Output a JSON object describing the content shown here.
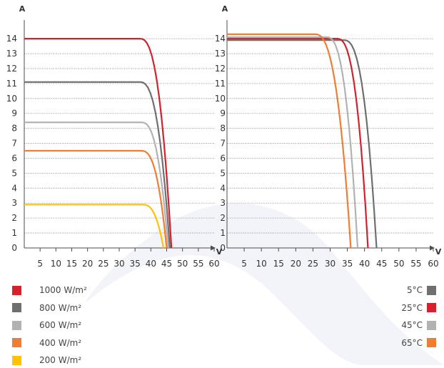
{
  "colors": {
    "background": "#ffffff",
    "grid": "#7f7f7f",
    "axis": "#4d4d4d",
    "text": "#333333",
    "red": "#d6202c",
    "dark_gray": "#6f6f6f",
    "light_gray": "#b2b2b2",
    "orange": "#f07d32",
    "yellow": "#ffc300",
    "watermark": "#eef0f7"
  },
  "legend_left": [
    {
      "label": "1000 W/m²",
      "color": "#d6202c"
    },
    {
      "label": "800 W/m²",
      "color": "#6f6f6f"
    },
    {
      "label": "600 W/m²",
      "color": "#b2b2b2"
    },
    {
      "label": "400 W/m²",
      "color": "#f07d32"
    },
    {
      "label": "200 W/m²",
      "color": "#ffc300"
    }
  ],
  "legend_right": [
    {
      "label": "5°C",
      "color": "#6f6f6f"
    },
    {
      "label": "25°C",
      "color": "#d6202c"
    },
    {
      "label": "45°C",
      "color": "#b2b2b2"
    },
    {
      "label": "65°C",
      "color": "#f07d32"
    }
  ],
  "chart_data": [
    {
      "type": "line",
      "title": "",
      "xlabel": "V",
      "ylabel": "A",
      "xlim": [
        0,
        60
      ],
      "ylim": [
        0,
        14.6
      ],
      "x_ticks": [
        5,
        10,
        15,
        20,
        25,
        30,
        35,
        40,
        45,
        50,
        55,
        60
      ],
      "y_ticks": [
        0,
        1,
        2,
        3,
        4,
        5,
        6,
        7,
        8,
        9,
        10,
        11,
        12,
        13,
        14
      ],
      "grid": "horizontal",
      "series": [
        {
          "name": "1000 W/m²",
          "color": "#d6202c",
          "isc": 14.0,
          "voc": 46.5,
          "knee_v": 36.5
        },
        {
          "name": "800 W/m²",
          "color": "#6f6f6f",
          "isc": 11.1,
          "voc": 46.0,
          "knee_v": 36.5
        },
        {
          "name": "600 W/m²",
          "color": "#b2b2b2",
          "isc": 8.4,
          "voc": 45.5,
          "knee_v": 37.0
        },
        {
          "name": "400 W/m²",
          "color": "#f07d32",
          "isc": 6.5,
          "voc": 45.0,
          "knee_v": 37.0
        },
        {
          "name": "200 W/m²",
          "color": "#ffc300",
          "isc": 2.9,
          "voc": 44.0,
          "knee_v": 37.5
        }
      ]
    },
    {
      "type": "line",
      "title": "",
      "xlabel": "V",
      "ylabel": "A",
      "xlim": [
        0,
        60
      ],
      "ylim": [
        0,
        14.6
      ],
      "x_ticks": [
        5,
        10,
        15,
        20,
        25,
        30,
        35,
        40,
        45,
        50,
        55,
        60
      ],
      "y_ticks": [
        0,
        1,
        2,
        3,
        4,
        5,
        6,
        7,
        8,
        9,
        10,
        11,
        12,
        13,
        14
      ],
      "grid": "horizontal",
      "series": [
        {
          "name": "5°C",
          "color": "#6f6f6f",
          "isc": 13.9,
          "voc": 43.5,
          "knee_v": 34.0
        },
        {
          "name": "25°C",
          "color": "#d6202c",
          "isc": 14.0,
          "voc": 41.0,
          "knee_v": 32.0
        },
        {
          "name": "45°C",
          "color": "#b2b2b2",
          "isc": 14.1,
          "voc": 38.0,
          "knee_v": 29.0
        },
        {
          "name": "65°C",
          "color": "#f07d32",
          "isc": 14.3,
          "voc": 36.0,
          "knee_v": 25.5
        }
      ]
    }
  ]
}
